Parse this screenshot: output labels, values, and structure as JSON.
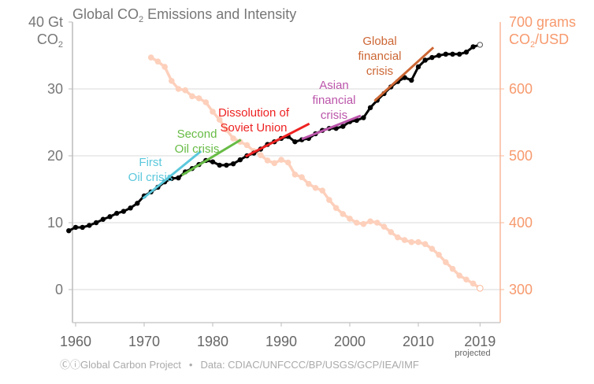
{
  "chart_data": {
    "type": "line",
    "title": "Global CO",
    "title_sub": "2",
    "title_rest": " Emissions and Intensity",
    "left_axis": {
      "label_line1": "40 Gt",
      "label_line2_main": "CO",
      "label_line2_sub": "2",
      "ticks": [
        0,
        10,
        20,
        30
      ],
      "range": [
        -5,
        40
      ]
    },
    "right_axis": {
      "label_line1": "700 grams",
      "label_line2_main": "CO",
      "label_line2_sub": "2",
      "label_line2_rest": "/USD",
      "ticks": [
        300,
        400,
        500,
        600
      ],
      "range": [
        250,
        700
      ],
      "color": "#f79a6e"
    },
    "x_axis": {
      "ticks": [
        "1960",
        "1970",
        "1980",
        "1990",
        "2000",
        "2010",
        "2019"
      ],
      "tick_values": [
        1960,
        1970,
        1980,
        1990,
        2000,
        2010,
        2019
      ],
      "projected_label": "projected",
      "range": [
        1959,
        2023
      ]
    },
    "grid": true,
    "series": [
      {
        "axis": "left",
        "color": "#000000",
        "x_start": 1959,
        "values": [
          8.8,
          9.3,
          9.3,
          9.6,
          10.0,
          10.5,
          10.9,
          11.4,
          11.7,
          12.2,
          12.9,
          14.0,
          14.6,
          15.3,
          16.1,
          16.6,
          16.7,
          17.6,
          18.1,
          18.7,
          19.3,
          19.1,
          18.6,
          18.6,
          18.8,
          19.4,
          20.0,
          20.4,
          21.0,
          21.7,
          22.1,
          22.6,
          22.9,
          22.1,
          22.4,
          22.6,
          23.3,
          23.8,
          24.1,
          24.1,
          24.4,
          25.1,
          25.3,
          25.7,
          27.2,
          28.3,
          29.3,
          30.3,
          31.1,
          31.7,
          31.3,
          33.3,
          34.3,
          34.7,
          35.0,
          35.2,
          35.2,
          35.2,
          35.5,
          36.3,
          36.6
        ],
        "projected_last": true
      },
      {
        "axis": "right",
        "color": "#fdd0bc",
        "x_start": 1971,
        "values": [
          647,
          641,
          633,
          612,
          600,
          598,
          589,
          586,
          580,
          566,
          554,
          539,
          526,
          521,
          516,
          507,
          501,
          493,
          489,
          494,
          490,
          472,
          468,
          458,
          452,
          448,
          434,
          422,
          413,
          406,
          400,
          398,
          402,
          400,
          394,
          386,
          378,
          374,
          371,
          371,
          368,
          361,
          352,
          341,
          331,
          321,
          315,
          309,
          302
        ],
        "projected_last": true
      }
    ],
    "trend_lines": [
      {
        "label_lines": [
          "First",
          "Oil crisis"
        ],
        "color": "#5bc8dc",
        "from": [
          1969.8,
          13.6
        ],
        "to": [
          1978.3,
          20.7
        ]
      },
      {
        "label_lines": [
          "Second",
          "Oil crisis"
        ],
        "color": "#66bb44",
        "from": [
          1975.5,
          17.1
        ],
        "to": [
          1984.1,
          22.4
        ]
      },
      {
        "label_lines": [
          "Dissolution of",
          "Soviet Union"
        ],
        "color": "#ee2222",
        "from": [
          1984.8,
          19.9
        ],
        "to": [
          1994.1,
          24.8
        ]
      },
      {
        "label_lines": [
          "Asian",
          "financial",
          "crisis"
        ],
        "color": "#bb55aa",
        "from": [
          1993.0,
          22.5
        ],
        "to": [
          2001.6,
          26.0
        ]
      },
      {
        "label_lines": [
          "Global",
          "financial",
          "crisis"
        ],
        "color": "#cc6633",
        "from": [
          2003.6,
          28.2
        ],
        "to": [
          2012.2,
          36.2
        ]
      }
    ]
  },
  "footer": {
    "logo_text": "Ⓒⓘ",
    "source": "Global Carbon Project",
    "separator": "•",
    "data_credit": "Data: CDIAC/UNFCCC/BP/USGS/GCP/IEA/IMF"
  }
}
